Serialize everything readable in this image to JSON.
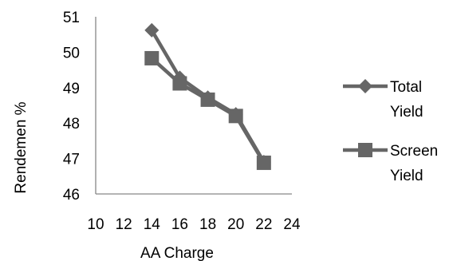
{
  "chart_data": {
    "type": "line",
    "title": "",
    "xlabel": "AA Charge",
    "ylabel": "Rendemen %",
    "xlim": [
      10,
      24
    ],
    "ylim": [
      46,
      51
    ],
    "xticks": [
      10,
      12,
      14,
      16,
      18,
      20,
      22,
      24
    ],
    "yticks": [
      46,
      47,
      48,
      49,
      50,
      51
    ],
    "grid": false,
    "legend_position": "right",
    "series": [
      {
        "name": "Total Yield",
        "name_lines": [
          "Total",
          "Yield"
        ],
        "marker": "diamond",
        "color": "#666666",
        "x": [
          14,
          16,
          18,
          20,
          22
        ],
        "y": [
          50.62,
          49.28,
          48.72,
          48.25,
          46.9
        ]
      },
      {
        "name": "Screen Yield",
        "name_lines": [
          "Screen",
          "Yield"
        ],
        "marker": "square",
        "color": "#666666",
        "x": [
          14,
          16,
          18,
          20,
          22
        ],
        "y": [
          49.83,
          49.12,
          48.66,
          48.2,
          46.88
        ]
      }
    ]
  }
}
